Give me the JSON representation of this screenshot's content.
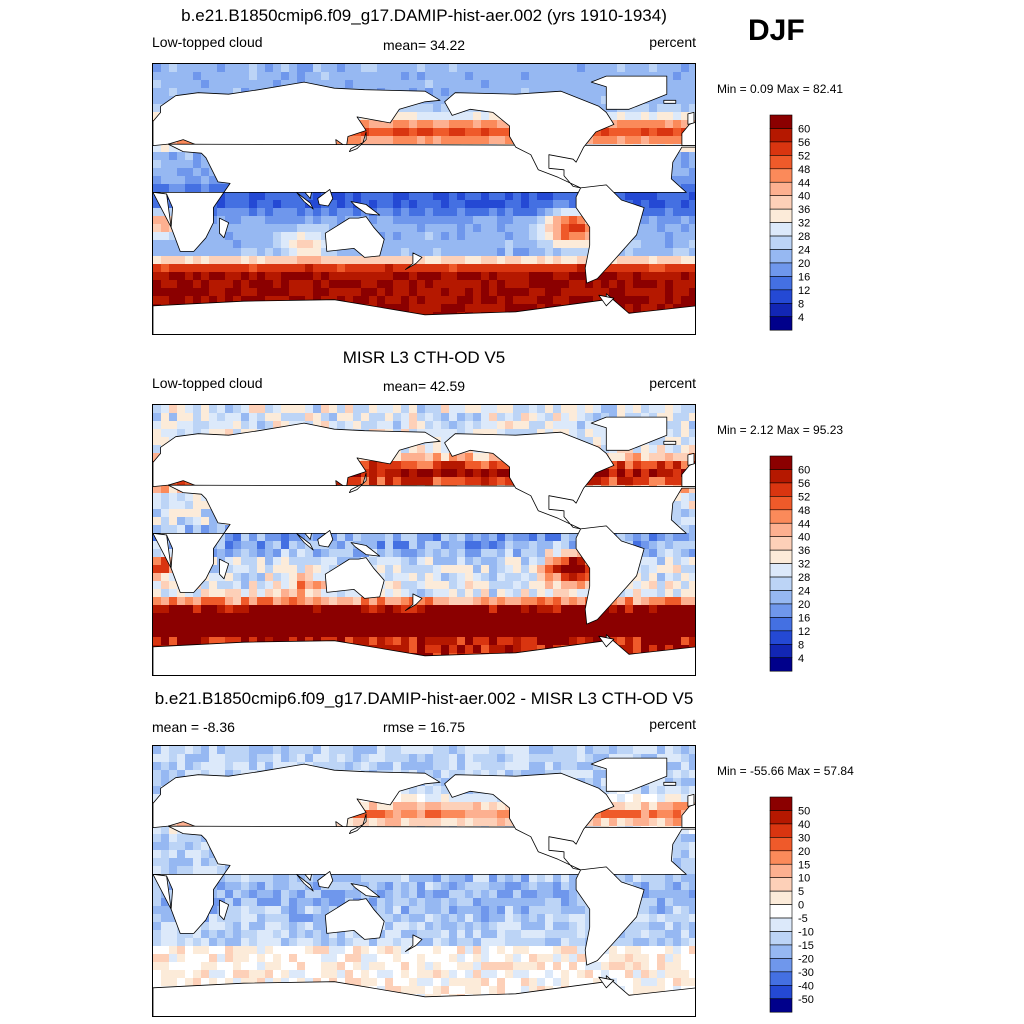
{
  "season": "DJF",
  "panels": [
    {
      "title": "b.e21.B1850cmip6.f09_g17.DAMIP-hist-aer.002 (yrs 1910-1934)",
      "left_label": "Low-topped cloud",
      "center_label": "mean=  34.22",
      "right_label": "percent",
      "minmax": "Min =   0.09 Max =  82.41",
      "palette": "seq",
      "levels": [
        "60",
        "56",
        "52",
        "48",
        "44",
        "40",
        "36",
        "32",
        "28",
        "24",
        "20",
        "16",
        "12",
        "8",
        "4"
      ]
    },
    {
      "title": "MISR L3 CTH-OD V5",
      "left_label": "Low-topped cloud",
      "center_label": "mean=  42.59",
      "right_label": "percent",
      "minmax": "Min =   2.12 Max =  95.23",
      "palette": "seq",
      "levels": [
        "60",
        "56",
        "52",
        "48",
        "44",
        "40",
        "36",
        "32",
        "28",
        "24",
        "20",
        "16",
        "12",
        "8",
        "4"
      ]
    },
    {
      "title": "b.e21.B1850cmip6.f09_g17.DAMIP-hist-aer.002 - MISR L3 CTH-OD V5",
      "left_label": "mean =  -8.36",
      "center_label": "rmse =  16.75",
      "right_label": "percent",
      "minmax": "Min = -55.66 Max =  57.84",
      "palette": "diff",
      "levels": [
        "50",
        "40",
        "30",
        "20",
        "15",
        "10",
        "5",
        "0",
        "-5",
        "-10",
        "-15",
        "-20",
        "-30",
        "-40",
        "-50"
      ]
    }
  ],
  "colors": {
    "seq": [
      "#8b0000",
      "#b51800",
      "#d93510",
      "#ef5a2a",
      "#fb8a5a",
      "#fdb090",
      "#fdd0b8",
      "#fcebd9",
      "#dce9fa",
      "#bcd4f6",
      "#96b8f2",
      "#6f97ec",
      "#4470e2",
      "#2449d4",
      "#1226b4",
      "#00008b"
    ],
    "diff": [
      "#8b0000",
      "#b51800",
      "#d93510",
      "#ef5a2a",
      "#fb8a5a",
      "#fdb090",
      "#fdd0b8",
      "#fcebd9",
      "#ffffff",
      "#dce9fa",
      "#bcd4f6",
      "#96b8f2",
      "#6f97ec",
      "#4470e2",
      "#2449d4",
      "#00008b"
    ]
  },
  "chart_data": [
    {
      "type": "heatmap",
      "title": "b.e21.B1850cmip6.f09_g17.DAMIP-hist-aer.002 (yrs 1910-1934)",
      "variable": "Low-topped cloud",
      "units": "percent",
      "season": "DJF",
      "mean": 34.22,
      "min": 0.09,
      "max": 82.41,
      "contour_levels": [
        4,
        8,
        12,
        16,
        20,
        24,
        28,
        32,
        36,
        40,
        44,
        48,
        52,
        56,
        60
      ]
    },
    {
      "type": "heatmap",
      "title": "MISR L3 CTH-OD V5",
      "variable": "Low-topped cloud",
      "units": "percent",
      "season": "DJF",
      "mean": 42.59,
      "min": 2.12,
      "max": 95.23,
      "contour_levels": [
        4,
        8,
        12,
        16,
        20,
        24,
        28,
        32,
        36,
        40,
        44,
        48,
        52,
        56,
        60
      ]
    },
    {
      "type": "heatmap",
      "title": "b.e21.B1850cmip6.f09_g17.DAMIP-hist-aer.002 - MISR L3 CTH-OD V5",
      "units": "percent",
      "season": "DJF",
      "mean": -8.36,
      "rmse": 16.75,
      "min": -55.66,
      "max": 57.84,
      "contour_levels": [
        -50,
        -40,
        -30,
        -20,
        -15,
        -10,
        -5,
        0,
        5,
        10,
        15,
        20,
        30,
        40,
        50
      ]
    }
  ]
}
